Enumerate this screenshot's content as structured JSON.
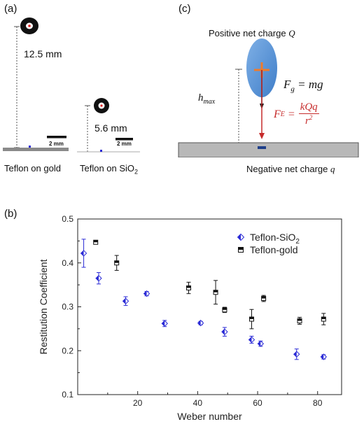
{
  "panel_a": {
    "label": "(a)",
    "height1": "12.5 mm",
    "height2": "5.6 mm",
    "scale_bar": "2 mm",
    "caption1": "Teflon on gold",
    "caption2_prefix": "Teflon on SiO",
    "caption2_sub": "2"
  },
  "panel_c": {
    "label": "(c)",
    "positive_charge_text": "Positive net charge ",
    "positive_charge_symbol": "Q",
    "hmax_base": "h",
    "hmax_sub": "max",
    "fg_formula": "F",
    "fg_sub": "g",
    "fg_rhs": " = mg",
    "fe_formula": "F",
    "fe_sub": "E",
    "fe_numer": "kQq",
    "fe_denom": "r",
    "fe_denom_exp": "2",
    "negative_charge_text": "Negative net charge ",
    "negative_charge_symbol": "q"
  },
  "panel_b": {
    "label": "(b)"
  },
  "chart_data": {
    "type": "scatter",
    "xlabel": "Weber number",
    "ylabel": "Restitution Coefficient",
    "xlim": [
      0,
      88
    ],
    "ylim": [
      0.1,
      0.5
    ],
    "xticks": [
      20,
      40,
      60,
      80
    ],
    "yticks": [
      0.1,
      0.2,
      0.3,
      0.4,
      0.5
    ],
    "legend_position": "top-right",
    "series": [
      {
        "name": "Teflon-SiO",
        "name_sub": "2",
        "color": "#2b2bd6",
        "marker": "diamond-half",
        "points": [
          {
            "x": 2,
            "y": 0.422,
            "err": 0.032
          },
          {
            "x": 7,
            "y": 0.365,
            "err": 0.013
          },
          {
            "x": 16,
            "y": 0.313,
            "err": 0.01
          },
          {
            "x": 23,
            "y": 0.33,
            "err": 0.005
          },
          {
            "x": 29,
            "y": 0.262,
            "err": 0.007
          },
          {
            "x": 41,
            "y": 0.263,
            "err": 0.004
          },
          {
            "x": 49,
            "y": 0.243,
            "err": 0.01
          },
          {
            "x": 58,
            "y": 0.225,
            "err": 0.008
          },
          {
            "x": 61,
            "y": 0.216,
            "err": 0.006
          },
          {
            "x": 73,
            "y": 0.192,
            "err": 0.012
          },
          {
            "x": 82,
            "y": 0.186,
            "err": 0.005
          }
        ]
      },
      {
        "name": "Teflon-gold",
        "name_sub": "",
        "color": "#111111",
        "marker": "square-half",
        "points": [
          {
            "x": 6,
            "y": 0.447,
            "err": 0.003
          },
          {
            "x": 13,
            "y": 0.4,
            "err": 0.017
          },
          {
            "x": 37,
            "y": 0.343,
            "err": 0.013
          },
          {
            "x": 46,
            "y": 0.333,
            "err": 0.027
          },
          {
            "x": 49,
            "y": 0.293,
            "err": 0.006
          },
          {
            "x": 58,
            "y": 0.272,
            "err": 0.022
          },
          {
            "x": 62,
            "y": 0.319,
            "err": 0.007
          },
          {
            "x": 74,
            "y": 0.268,
            "err": 0.008
          },
          {
            "x": 82,
            "y": 0.272,
            "err": 0.013
          }
        ]
      }
    ]
  }
}
